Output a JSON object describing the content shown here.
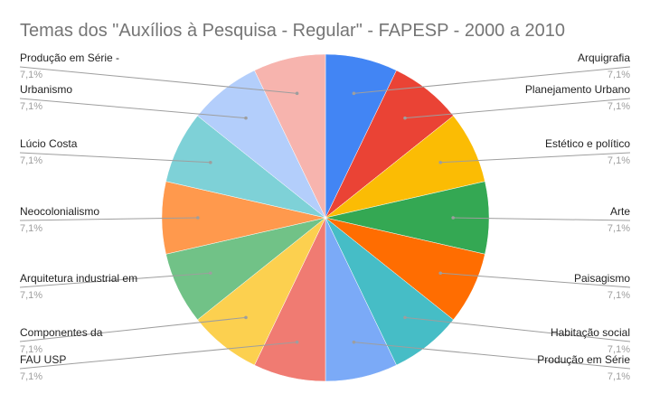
{
  "chart_data": {
    "type": "pie",
    "title": "Temas dos \"Auxílios à Pesquisa - Regular\" - FAPESP - 2000 a 2010",
    "slices": [
      {
        "label": "Arquigrafia",
        "percent_label": "7,1%",
        "value": 7.1,
        "color": "#4285f4"
      },
      {
        "label": "Planejamento Urbano",
        "percent_label": "7,1%",
        "value": 7.1,
        "color": "#ea4335"
      },
      {
        "label": "Estético e político",
        "percent_label": "7,1%",
        "value": 7.1,
        "color": "#fbbc04"
      },
      {
        "label": "Arte",
        "percent_label": "7,1%",
        "value": 7.1,
        "color": "#34a853"
      },
      {
        "label": "Paisagismo",
        "percent_label": "7,1%",
        "value": 7.1,
        "color": "#ff6d01"
      },
      {
        "label": "Habitação social",
        "percent_label": "7,1%",
        "value": 7.1,
        "color": "#46bdc6"
      },
      {
        "label": "Produção em Série",
        "percent_label": "7,1%",
        "value": 7.1,
        "color": "#7baaf7"
      },
      {
        "label": "FAU USP",
        "percent_label": "7,1%",
        "value": 7.1,
        "color": "#f07b72"
      },
      {
        "label": "Componentes da",
        "percent_label": "7,1%",
        "value": 7.1,
        "color": "#fcd04f"
      },
      {
        "label": "Arquitetura industrial em",
        "percent_label": "7,1%",
        "value": 7.1,
        "color": "#71c287"
      },
      {
        "label": "Neocolonialismo",
        "percent_label": "7,1%",
        "value": 7.1,
        "color": "#ff994d"
      },
      {
        "label": "Lúcio Costa",
        "percent_label": "7,1%",
        "value": 7.1,
        "color": "#7ed1d7"
      },
      {
        "label": "Urbanismo",
        "percent_label": "7,1%",
        "value": 7.1,
        "color": "#b3cefb"
      },
      {
        "label": "Produção em Série -",
        "percent_label": "7,1%",
        "value": 7.1,
        "color": "#f7b4ae"
      }
    ],
    "legend": "labels-beside-slices"
  }
}
